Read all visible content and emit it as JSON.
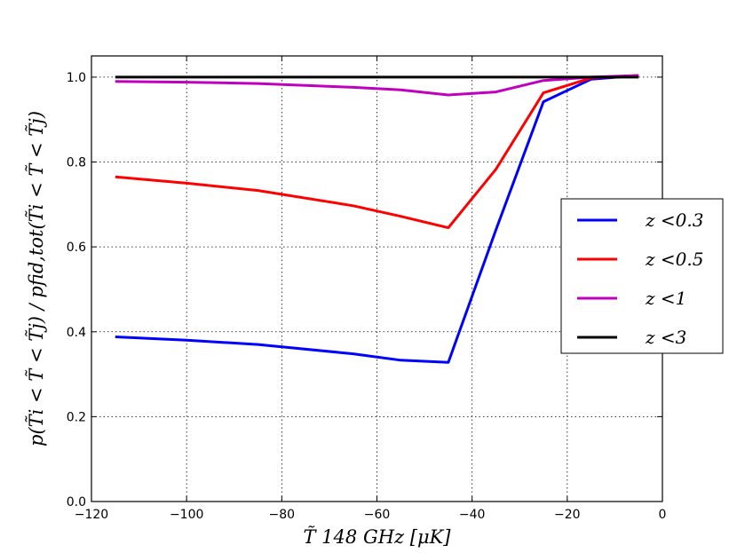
{
  "chart_data": {
    "type": "line",
    "title": "",
    "xlabel": "T̃ 148 GHz [μK]",
    "ylabel": "p(T̃i < T̃ < T̃j) / pfid,tot(T̃i < T̃ < T̃j)",
    "xlim": [
      -120,
      0
    ],
    "ylim": [
      0.0,
      1.05
    ],
    "xticks": [
      -120,
      -100,
      -80,
      -60,
      -40,
      -20,
      0
    ],
    "xtick_labels": [
      "−120",
      "−100",
      "−80",
      "−60",
      "−40",
      "−20",
      "0"
    ],
    "yticks": [
      0.0,
      0.2,
      0.4,
      0.6,
      0.8,
      1.0
    ],
    "ytick_labels": [
      "0.0",
      "0.2",
      "0.4",
      "0.6",
      "0.8",
      "1.0"
    ],
    "grid": true,
    "legend_position": "center-right",
    "series": [
      {
        "name": "z <0.3",
        "color": "#0000ff",
        "x": [
          -115,
          -100,
          -85,
          -65,
          -55,
          -45,
          -35,
          -25,
          -15,
          -5
        ],
        "y": [
          0.388,
          0.38,
          0.37,
          0.348,
          0.333,
          0.328,
          0.64,
          0.942,
          0.995,
          1.004
        ]
      },
      {
        "name": "z <0.5",
        "color": "#ff0000",
        "x": [
          -115,
          -100,
          -85,
          -65,
          -55,
          -45,
          -35,
          -25,
          -15,
          -5
        ],
        "y": [
          0.765,
          0.75,
          0.733,
          0.697,
          0.672,
          0.645,
          0.783,
          0.963,
          0.998,
          1.004
        ]
      },
      {
        "name": "z <1",
        "color": "#bf00bf",
        "x": [
          -115,
          -100,
          -85,
          -65,
          -55,
          -45,
          -35,
          -25,
          -15,
          -5
        ],
        "y": [
          0.99,
          0.988,
          0.985,
          0.976,
          0.97,
          0.958,
          0.965,
          0.992,
          1.0,
          1.004
        ]
      },
      {
        "name": "z <3",
        "color": "#000000",
        "x": [
          -115,
          -100,
          -85,
          -65,
          -55,
          -45,
          -35,
          -25,
          -15,
          -5
        ],
        "y": [
          1.0,
          1.0,
          1.0,
          1.0,
          1.0,
          1.0,
          1.0,
          1.0,
          1.0,
          1.0
        ]
      }
    ]
  }
}
